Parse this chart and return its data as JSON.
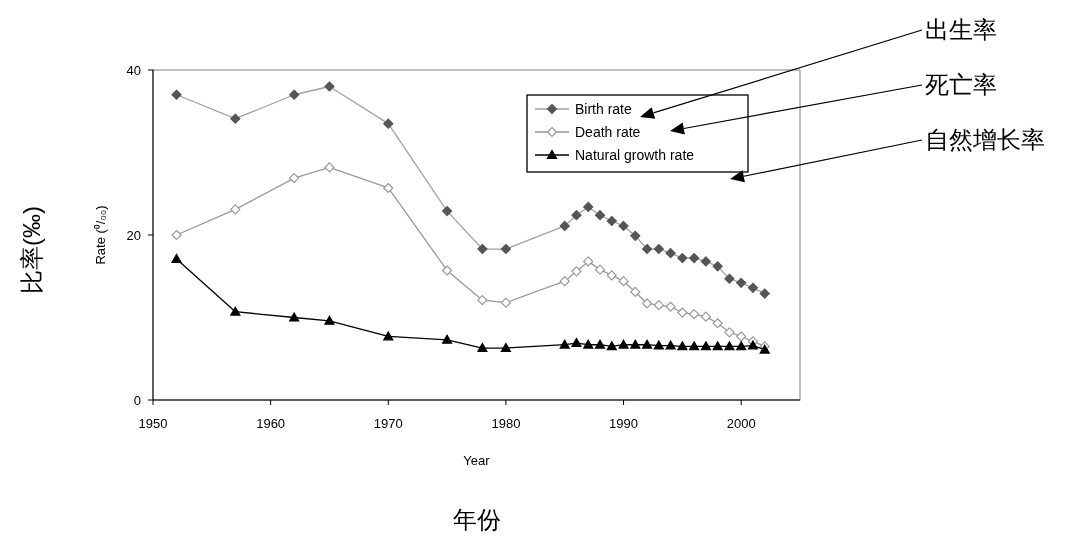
{
  "chart_data": {
    "type": "line",
    "xlabel": "Year",
    "ylabel": "Rate (⁰/₀₀)",
    "x": [
      1952,
      1957,
      1962,
      1965,
      1970,
      1975,
      1978,
      1980,
      1985,
      1986,
      1987,
      1988,
      1989,
      1990,
      1991,
      1992,
      1993,
      1994,
      1995,
      1996,
      1997,
      1998,
      1999,
      2000,
      2001,
      2002
    ],
    "series": [
      {
        "name": "Birth rate",
        "color": "#555555",
        "marker": "diamond",
        "values": [
          37.0,
          34.1,
          37.0,
          38.0,
          33.5,
          22.9,
          18.3,
          18.3,
          21.1,
          22.4,
          23.4,
          22.4,
          21.7,
          21.1,
          19.9,
          18.3,
          18.3,
          17.8,
          17.2,
          17.2,
          16.8,
          16.2,
          14.7,
          14.2,
          13.6,
          12.9
        ]
      },
      {
        "name": "Death rate",
        "color": "#999999",
        "marker": "diamond",
        "values": [
          20.0,
          23.1,
          26.9,
          28.2,
          25.7,
          15.7,
          12.1,
          11.8,
          14.4,
          15.6,
          16.8,
          15.8,
          15.1,
          14.4,
          13.1,
          11.7,
          11.5,
          11.3,
          10.6,
          10.4,
          10.1,
          9.3,
          8.2,
          7.7,
          7.1,
          6.5
        ]
      },
      {
        "name": "Natural growth rate",
        "color": "#000000",
        "marker": "triangle",
        "values": [
          17.1,
          10.7,
          10.0,
          9.6,
          7.7,
          7.3,
          6.3,
          6.3,
          6.7,
          6.9,
          6.7,
          6.7,
          6.5,
          6.7,
          6.7,
          6.7,
          6.6,
          6.6,
          6.5,
          6.5,
          6.5,
          6.5,
          6.5,
          6.5,
          6.6,
          6.1
        ]
      }
    ],
    "xlim": [
      1950,
      2005
    ],
    "xticks": [
      1950,
      1960,
      1970,
      1980,
      1990,
      2000
    ],
    "ylim": [
      0,
      40
    ],
    "yticks": [
      0,
      20,
      40
    ],
    "grid": false,
    "legend": "top right",
    "line_style": "solid",
    "annotations": [
      "出生率",
      "死亡率",
      "自然增长率",
      "年份",
      "比率(‰)"
    ]
  }
}
